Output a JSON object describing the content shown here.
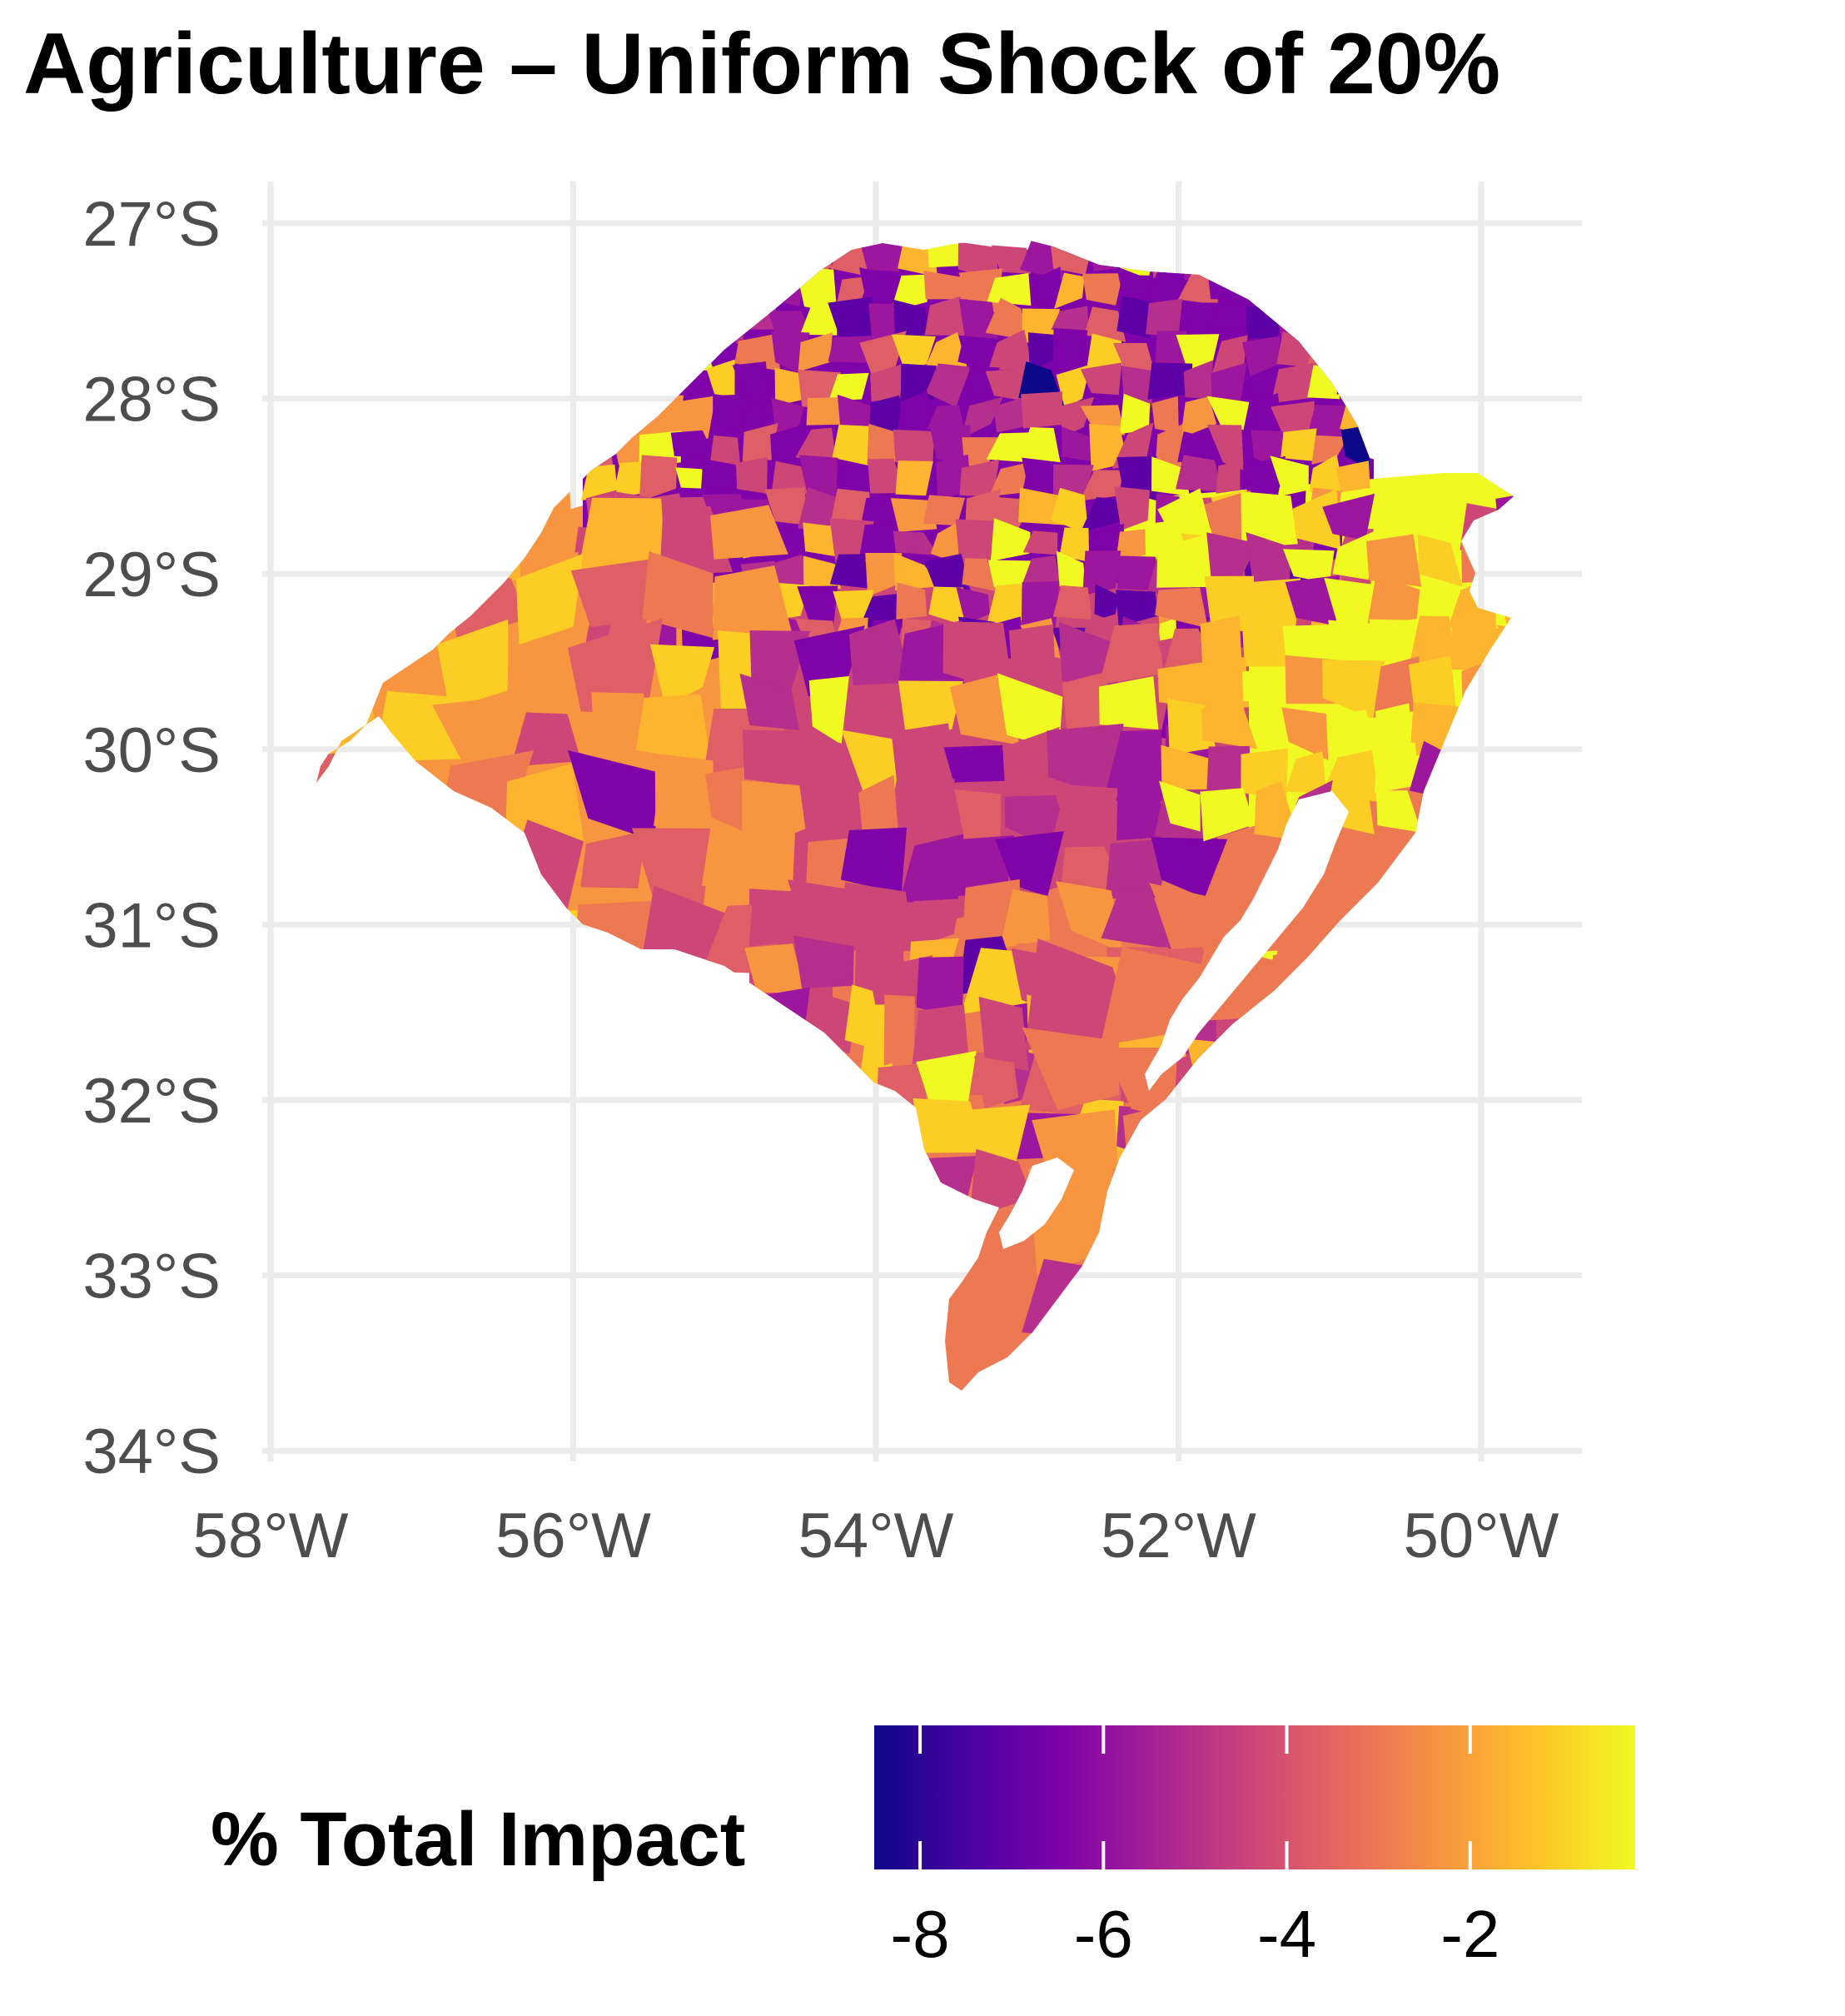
{
  "title": "Agriculture – Uniform Shock of 20%",
  "axes": {
    "lat_labels": [
      "27°S",
      "28°S",
      "29°S",
      "30°S",
      "31°S",
      "32°S",
      "33°S",
      "34°S"
    ],
    "lon_labels": [
      "58°W",
      "56°W",
      "54°W",
      "52°W",
      "50°W"
    ]
  },
  "legend": {
    "title": "% Total Impact",
    "ticks": [
      "-8",
      "-6",
      "-4",
      "-2"
    ],
    "tick_values": [
      -8,
      -6,
      -4,
      -2
    ],
    "range": [
      -8.5,
      -0.2
    ],
    "colormap": "plasma"
  },
  "colors": {
    "dark_navy": "#0d0887",
    "dark_purple": "#5d01a6",
    "purple": "#7e03a8",
    "magenta_purple": "#9c179e",
    "magenta": "#b52f8c",
    "pink": "#cc4778",
    "rose": "#de5f65",
    "salmon": "#ed7953",
    "orange": "#f89540",
    "light_orange": "#fdb42f",
    "gold": "#fcce25",
    "yellow": "#f0f921",
    "grid": "#ebebeb",
    "tick_text": "#4d4d4d"
  }
}
